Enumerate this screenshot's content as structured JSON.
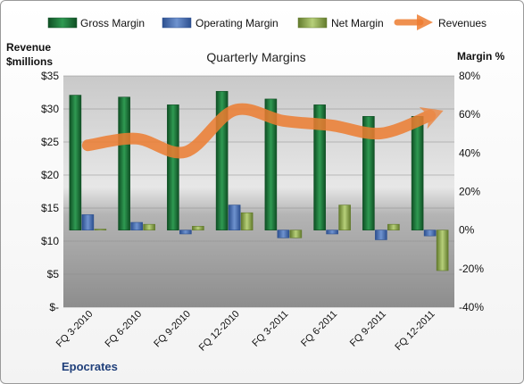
{
  "chart_data": {
    "type": "bar",
    "title": "Quarterly Margins",
    "company": "Epocrates",
    "left_axis": {
      "title_line1": "Revenue",
      "title_line2": "$millions",
      "range": [
        0,
        35
      ],
      "ticks": [
        0,
        5,
        10,
        15,
        20,
        25,
        30,
        35
      ],
      "tick_labels": [
        "$-",
        "$5",
        "$10",
        "$15",
        "$20",
        "$25",
        "$30",
        "$35"
      ]
    },
    "right_axis": {
      "title": "Margin %",
      "range": [
        -40,
        80
      ],
      "ticks": [
        -40,
        -20,
        0,
        20,
        40,
        60,
        80
      ],
      "tick_labels": [
        "-40%",
        "-20%",
        "0%",
        "20%",
        "40%",
        "60%",
        "80%"
      ]
    },
    "categories": [
      "FQ 3-2010",
      "FQ 6-2010",
      "FQ 9-2010",
      "FQ 12-2010",
      "FQ 3-2011",
      "FQ 6-2011",
      "FQ 9-2011",
      "FQ 12-2011"
    ],
    "legend": {
      "position": "top",
      "items": [
        "Gross Margin",
        "Operating Margin",
        "Net Margin",
        "Revenues"
      ]
    },
    "series": [
      {
        "name": "Gross Margin",
        "axis": "right",
        "kind": "bar",
        "color": "#1f7a3c",
        "values": [
          70,
          69,
          65,
          72,
          68,
          65,
          59,
          59
        ]
      },
      {
        "name": "Operating Margin",
        "axis": "right",
        "kind": "bar",
        "color": "#4a72b8",
        "values": [
          8,
          4,
          -2,
          13,
          -4,
          -2,
          -5,
          -3
        ]
      },
      {
        "name": "Net Margin",
        "axis": "right",
        "kind": "bar",
        "color": "#92b152",
        "values": [
          0.5,
          3,
          2,
          9,
          -4,
          13,
          3,
          -21
        ]
      },
      {
        "name": "Revenues",
        "axis": "left",
        "kind": "line",
        "color": "#ed7d31",
        "values": [
          24.5,
          25.5,
          23.5,
          29.8,
          28.2,
          27.5,
          26.3,
          29.0
        ]
      }
    ]
  }
}
